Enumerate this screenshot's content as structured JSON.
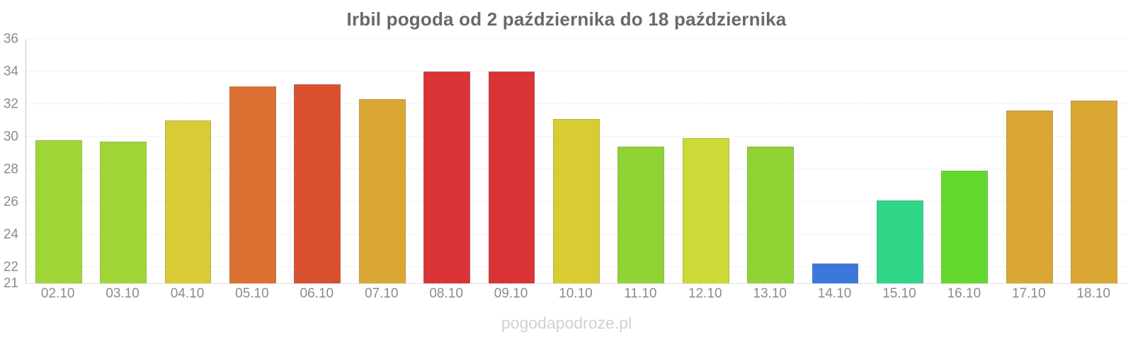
{
  "title": "Irbil pogoda od 2 października do 18 października",
  "watermark": "pogodapodroze.pl",
  "chart_data": {
    "type": "bar",
    "title": "Irbil pogoda od 2 października do 18 października",
    "xlabel": "",
    "ylabel": "",
    "ylim": [
      21,
      36
    ],
    "yticks": [
      21,
      22,
      24,
      26,
      28,
      30,
      32,
      34,
      36
    ],
    "grid": true,
    "legend": "none",
    "categories": [
      "02.10",
      "03.10",
      "04.10",
      "05.10",
      "06.10",
      "07.10",
      "08.10",
      "09.10",
      "10.10",
      "11.10",
      "12.10",
      "13.10",
      "14.10",
      "15.10",
      "16.10",
      "17.10",
      "18.10"
    ],
    "values": [
      29.8,
      29.7,
      31.0,
      33.1,
      33.2,
      32.3,
      34.0,
      34.0,
      31.1,
      29.4,
      29.9,
      29.4,
      22.2,
      26.1,
      27.9,
      31.6,
      32.2
    ],
    "colors": [
      "#A0D636",
      "#A0D636",
      "#D9CB35",
      "#DD7033",
      "#D9502F",
      "#DBA733",
      "#D93436",
      "#D93436",
      "#D9CC33",
      "#8FD334",
      "#CCD936",
      "#8FD334",
      "#3B78DB",
      "#2FD687",
      "#63D92E",
      "#DBA733",
      "#DBA733"
    ],
    "background": "#ffffff",
    "axis_label_color": "#8b8b8b",
    "title_color": "#666a6d",
    "watermark_color": "#d4d1cb"
  }
}
